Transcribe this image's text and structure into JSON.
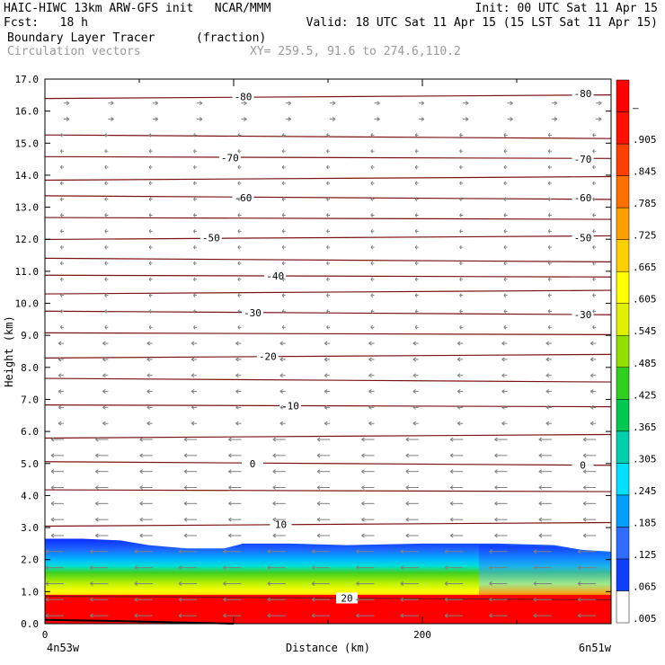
{
  "header": {
    "line1_left": "HAIC-HIWC 13km ARW-GFS init   NCAR/MMM",
    "line1_right": "Init: 00 UTC Sat 11 Apr 15",
    "line2_left": "Fcst:   18 h",
    "line2_right": "Valid: 18 UTC Sat 11 Apr 15 (15 LST Sat 11 Apr 15)",
    "field": "Boundary Layer Tracer",
    "units": "(fraction)",
    "vectors": "Circulation vectors",
    "xy": "XY= 259.5, 91.6 to 274.6,110.2"
  },
  "chart_data": {
    "type": "heatmap",
    "title": "Boundary Layer Tracer",
    "ylabel": "Height (km)",
    "xlabel": "Distance (km)",
    "xlim": [
      0,
      300
    ],
    "ylim": [
      0,
      17
    ],
    "x_ticks": [
      "0",
      "200"
    ],
    "y_ticks": [
      "0.0",
      "1.0",
      "2.0",
      "3.0",
      "4.0",
      "5.0",
      "6.0",
      "7.0",
      "8.0",
      "9.0",
      "10.0",
      "11.0",
      "12.0",
      "13.0",
      "14.0",
      "15.0",
      "16.0",
      "17.0"
    ],
    "x_endpoints": {
      "left": "4n53w",
      "right": "6n51w"
    },
    "colorbar_labels": [
      ".005",
      ".065",
      ".125",
      ".185",
      ".245",
      ".305",
      ".365",
      ".425",
      ".485",
      ".545",
      ".605",
      ".665",
      ".725",
      ".785",
      ".845",
      ".905",
      "–"
    ],
    "colorbar_colors": [
      "#ffffff",
      "#1040ff",
      "#2f6cff",
      "#00a0ff",
      "#00e0ff",
      "#00d0b0",
      "#00c850",
      "#30d020",
      "#90e000",
      "#e0f000",
      "#ffff00",
      "#ffd000",
      "#ffa000",
      "#ff7000",
      "#ff4000",
      "#ff1000",
      "#ff0000"
    ],
    "tracer_top_km": [
      [
        0,
        2.65
      ],
      [
        20,
        2.65
      ],
      [
        40,
        2.6
      ],
      [
        55,
        2.45
      ],
      [
        75,
        2.35
      ],
      [
        95,
        2.35
      ],
      [
        105,
        2.5
      ],
      [
        130,
        2.5
      ],
      [
        160,
        2.45
      ],
      [
        200,
        2.5
      ],
      [
        240,
        2.5
      ],
      [
        270,
        2.45
      ],
      [
        285,
        2.3
      ],
      [
        300,
        2.25
      ]
    ],
    "isotherms": [
      {
        "height_km": 0.8,
        "label": "20",
        "label_x": 160
      },
      {
        "height_km": 3.1,
        "label": "10",
        "label_x": 125
      },
      {
        "height_km": 4.15,
        "label": "",
        "label_x": 0
      },
      {
        "height_km": 5.0,
        "label": "0",
        "label_x": 110
      },
      {
        "height_km": 5.85,
        "label": "",
        "label_x": 0
      },
      {
        "height_km": 6.8,
        "label": "-10",
        "label_x": 130
      },
      {
        "height_km": 7.6,
        "label": "",
        "label_x": 0
      },
      {
        "height_km": 8.35,
        "label": "-20",
        "label_x": 118
      },
      {
        "height_km": 9.05,
        "label": "",
        "label_x": 0
      },
      {
        "height_km": 9.7,
        "label": "-30",
        "label_x": 110
      },
      {
        "height_km": 10.35,
        "label": "",
        "label_x": 0
      },
      {
        "height_km": 10.85,
        "label": "-40",
        "label_x": 122
      },
      {
        "height_km": 11.35,
        "label": "",
        "label_x": 0
      },
      {
        "height_km": 12.05,
        "label": "-50",
        "label_x": 88
      },
      {
        "height_km": 12.65,
        "label": "",
        "label_x": 0
      },
      {
        "height_km": 13.3,
        "label": "-60",
        "label_x": 105
      },
      {
        "height_km": 13.9,
        "label": "",
        "label_x": 0
      },
      {
        "height_km": 14.55,
        "label": "-70",
        "label_x": 98
      },
      {
        "height_km": 15.2,
        "label": "",
        "label_x": 0
      },
      {
        "height_km": 16.45,
        "label": "-80",
        "label_x": 105
      }
    ],
    "isotherm_right_labels": [
      {
        "height_km": 4.95,
        "label": "0"
      },
      {
        "height_km": 9.65,
        "label": "-30"
      },
      {
        "height_km": 12.05,
        "label": "-50"
      },
      {
        "height_km": 13.3,
        "label": "-60"
      },
      {
        "height_km": 14.5,
        "label": "-70"
      },
      {
        "height_km": 16.55,
        "label": "-80"
      }
    ]
  }
}
